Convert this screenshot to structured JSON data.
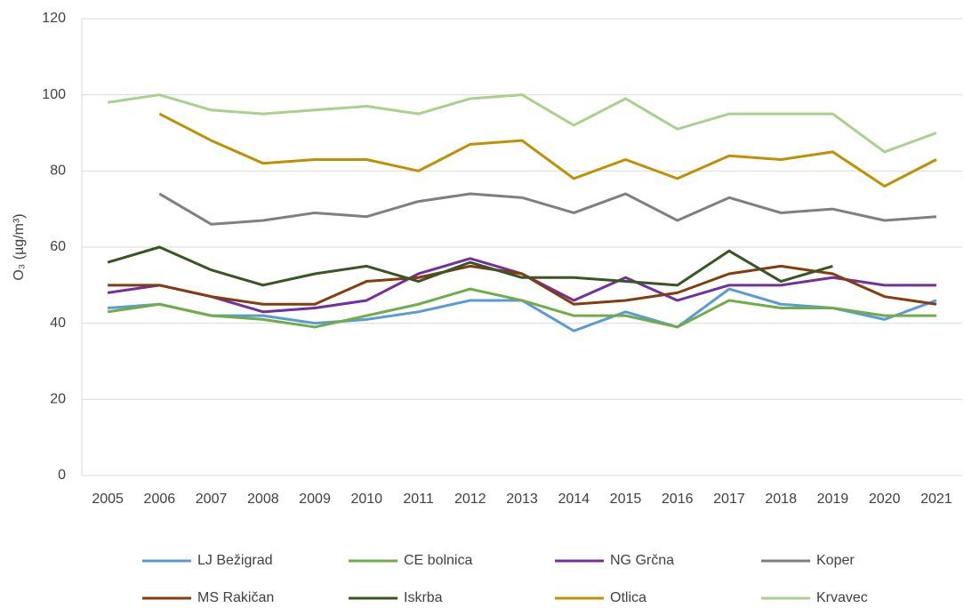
{
  "chart_data": {
    "type": "line",
    "y_label": "O₃ (µg/m³)",
    "categories": [
      "2005",
      "2006",
      "2007",
      "2008",
      "2009",
      "2010",
      "2011",
      "2012",
      "2013",
      "2014",
      "2015",
      "2016",
      "2017",
      "2018",
      "2019",
      "2020",
      "2021"
    ],
    "ylim": [
      0,
      120
    ],
    "yticks": [
      0,
      20,
      40,
      60,
      80,
      100,
      120
    ],
    "grid": true,
    "series": [
      {
        "name": "LJ Bežigrad",
        "color": "#5b9bd5",
        "values": [
          44,
          45,
          42,
          42,
          40,
          41,
          43,
          46,
          46,
          38,
          43,
          39,
          49,
          45,
          44,
          41,
          46
        ]
      },
      {
        "name": "CE bolnica",
        "color": "#70ad47",
        "values": [
          43,
          45,
          42,
          41,
          39,
          42,
          45,
          49,
          46,
          42,
          42,
          39,
          46,
          44,
          44,
          42,
          42
        ]
      },
      {
        "name": "NG Grčna",
        "color": "#7030a0",
        "values": [
          48,
          50,
          47,
          43,
          44,
          46,
          53,
          57,
          53,
          46,
          52,
          46,
          50,
          50,
          52,
          50,
          50
        ]
      },
      {
        "name": "Koper",
        "color": "#7f7f7f",
        "values": [
          null,
          74,
          66,
          67,
          69,
          68,
          72,
          74,
          73,
          69,
          74,
          67,
          73,
          69,
          70,
          67,
          68
        ]
      },
      {
        "name": "MS Rakičan",
        "color": "#843c0c",
        "values": [
          50,
          50,
          47,
          45,
          45,
          51,
          52,
          55,
          53,
          45,
          46,
          48,
          53,
          55,
          53,
          47,
          45
        ]
      },
      {
        "name": "Iskrba",
        "color": "#375623",
        "values": [
          56,
          60,
          54,
          50,
          53,
          55,
          51,
          56,
          52,
          52,
          51,
          50,
          59,
          51,
          55,
          null,
          null
        ]
      },
      {
        "name": "Otlica",
        "color": "#bf9000",
        "values": [
          null,
          95,
          88,
          82,
          83,
          83,
          80,
          87,
          88,
          78,
          83,
          78,
          84,
          83,
          85,
          76,
          83
        ]
      },
      {
        "name": "Krvavec",
        "color": "#a9d18e",
        "values": [
          98,
          100,
          96,
          95,
          96,
          97,
          95,
          99,
          100,
          92,
          99,
          91,
          95,
          95,
          95,
          85,
          90
        ]
      }
    ]
  }
}
